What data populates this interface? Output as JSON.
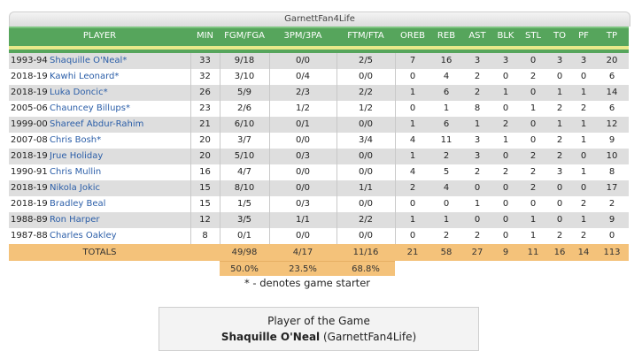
{
  "team_name": "GarnettFan4Life",
  "headers": [
    "PLAYER",
    "MIN",
    "FGM/FGA",
    "3PM/3PA",
    "FTM/FTA",
    "OREB",
    "REB",
    "AST",
    "BLK",
    "STL",
    "TO",
    "PF",
    "TP"
  ],
  "rows": [
    {
      "season": "1993-94",
      "player": "Shaquille O'Neal*",
      "min": "33",
      "fg": "9/18",
      "tp3": "0/0",
      "ft": "2/5",
      "oreb": "7",
      "reb": "16",
      "ast": "3",
      "blk": "3",
      "stl": "0",
      "to": "3",
      "pf": "3",
      "pts": "20"
    },
    {
      "season": "2018-19",
      "player": "Kawhi Leonard*",
      "min": "32",
      "fg": "3/10",
      "tp3": "0/4",
      "ft": "0/0",
      "oreb": "0",
      "reb": "4",
      "ast": "2",
      "blk": "0",
      "stl": "2",
      "to": "0",
      "pf": "0",
      "pts": "6"
    },
    {
      "season": "2018-19",
      "player": "Luka Doncic*",
      "min": "26",
      "fg": "5/9",
      "tp3": "2/3",
      "ft": "2/2",
      "oreb": "1",
      "reb": "6",
      "ast": "2",
      "blk": "1",
      "stl": "0",
      "to": "1",
      "pf": "1",
      "pts": "14"
    },
    {
      "season": "2005-06",
      "player": "Chauncey Billups*",
      "min": "23",
      "fg": "2/6",
      "tp3": "1/2",
      "ft": "1/2",
      "oreb": "0",
      "reb": "1",
      "ast": "8",
      "blk": "0",
      "stl": "1",
      "to": "2",
      "pf": "2",
      "pts": "6"
    },
    {
      "season": "1999-00",
      "player": "Shareef Abdur-Rahim",
      "min": "21",
      "fg": "6/10",
      "tp3": "0/1",
      "ft": "0/0",
      "oreb": "1",
      "reb": "6",
      "ast": "1",
      "blk": "2",
      "stl": "0",
      "to": "1",
      "pf": "1",
      "pts": "12"
    },
    {
      "season": "2007-08",
      "player": "Chris Bosh*",
      "min": "20",
      "fg": "3/7",
      "tp3": "0/0",
      "ft": "3/4",
      "oreb": "4",
      "reb": "11",
      "ast": "3",
      "blk": "1",
      "stl": "0",
      "to": "2",
      "pf": "1",
      "pts": "9"
    },
    {
      "season": "2018-19",
      "player": "Jrue Holiday",
      "min": "20",
      "fg": "5/10",
      "tp3": "0/3",
      "ft": "0/0",
      "oreb": "1",
      "reb": "2",
      "ast": "3",
      "blk": "0",
      "stl": "2",
      "to": "2",
      "pf": "0",
      "pts": "10"
    },
    {
      "season": "1990-91",
      "player": "Chris Mullin",
      "min": "16",
      "fg": "4/7",
      "tp3": "0/0",
      "ft": "0/0",
      "oreb": "4",
      "reb": "5",
      "ast": "2",
      "blk": "2",
      "stl": "2",
      "to": "3",
      "pf": "1",
      "pts": "8"
    },
    {
      "season": "2018-19",
      "player": "Nikola Jokic",
      "min": "15",
      "fg": "8/10",
      "tp3": "0/0",
      "ft": "1/1",
      "oreb": "2",
      "reb": "4",
      "ast": "0",
      "blk": "0",
      "stl": "2",
      "to": "0",
      "pf": "0",
      "pts": "17"
    },
    {
      "season": "2018-19",
      "player": "Bradley Beal",
      "min": "15",
      "fg": "1/5",
      "tp3": "0/3",
      "ft": "0/0",
      "oreb": "0",
      "reb": "0",
      "ast": "1",
      "blk": "0",
      "stl": "0",
      "to": "0",
      "pf": "2",
      "pts": "2"
    },
    {
      "season": "1988-89",
      "player": "Ron Harper",
      "min": "12",
      "fg": "3/5",
      "tp3": "1/1",
      "ft": "2/2",
      "oreb": "1",
      "reb": "1",
      "ast": "0",
      "blk": "0",
      "stl": "1",
      "to": "0",
      "pf": "1",
      "pts": "9"
    },
    {
      "season": "1987-88",
      "player": "Charles Oakley",
      "min": "8",
      "fg": "0/1",
      "tp3": "0/0",
      "ft": "0/0",
      "oreb": "0",
      "reb": "2",
      "ast": "2",
      "blk": "0",
      "stl": "1",
      "to": "2",
      "pf": "2",
      "pts": "0"
    }
  ],
  "totals": {
    "label": "TOTALS",
    "fg": "49/98",
    "tp3": "4/17",
    "ft": "11/16",
    "oreb": "21",
    "reb": "58",
    "ast": "27",
    "blk": "9",
    "stl": "11",
    "to": "16",
    "pf": "14",
    "pts": "113"
  },
  "percentages": {
    "fg": "50.0%",
    "tp3": "23.5%",
    "ft": "68.8%"
  },
  "starter_note": "* - denotes game starter",
  "player_of_game": {
    "title": "Player of the Game",
    "name": "Shaquille O'Neal",
    "team": "(GarnettFan4Life)"
  }
}
